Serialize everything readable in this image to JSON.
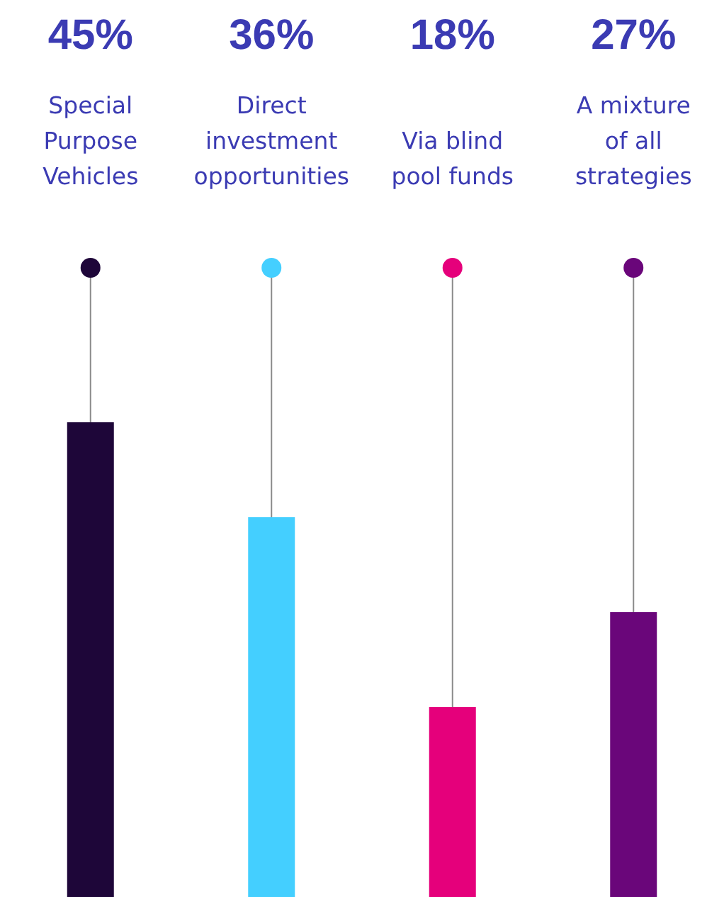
{
  "chart_data": {
    "type": "bar",
    "categories": [
      "Special Purpose Vehicles",
      "Direct investment opportunities",
      "Via blind pool funds",
      "A mixture of all strategies"
    ],
    "values": [
      45,
      36,
      18,
      27
    ],
    "value_labels": [
      "45%",
      "36%",
      "18%",
      "27%"
    ],
    "colors": [
      "#1e0639",
      "#44cfff",
      "#e5007b",
      "#6a067a"
    ],
    "tick_labels": "x"
  }
}
